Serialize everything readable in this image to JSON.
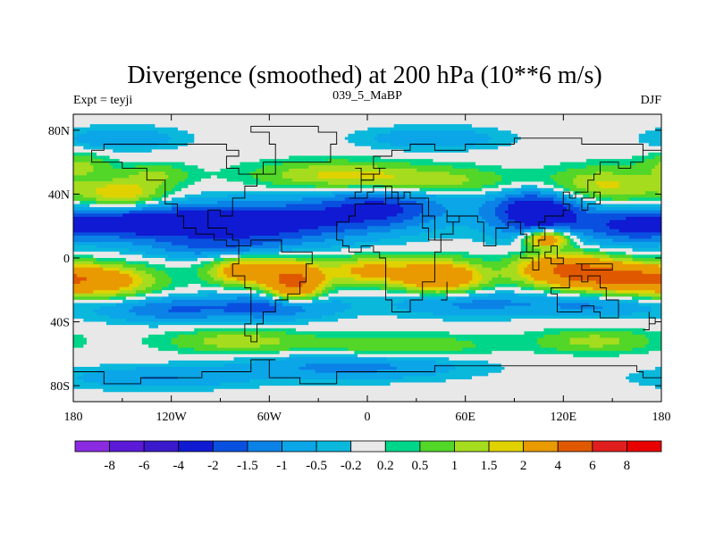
{
  "chart_data": {
    "type": "heatmap",
    "title": "Divergence (smoothed) at 200 hPa (10**6 m/s)",
    "subtitle_left": "Expt = teyji",
    "subtitle_center": "039_5_MaBP",
    "subtitle_right": "DJF",
    "xlabel": "",
    "ylabel": "",
    "xlim": [
      -180,
      180
    ],
    "ylim": [
      -90,
      90
    ],
    "x_ticks": [
      {
        "value": -180,
        "label": "180"
      },
      {
        "value": -120,
        "label": "120W"
      },
      {
        "value": -60,
        "label": "60W"
      },
      {
        "value": 0,
        "label": "0"
      },
      {
        "value": 60,
        "label": "60E"
      },
      {
        "value": 120,
        "label": "120E"
      },
      {
        "value": 180,
        "label": "180"
      }
    ],
    "y_ticks": [
      {
        "value": 80,
        "label": "80N"
      },
      {
        "value": 40,
        "label": "40N"
      },
      {
        "value": 0,
        "label": "0"
      },
      {
        "value": -40,
        "label": "40S"
      },
      {
        "value": -80,
        "label": "80S"
      }
    ],
    "colorbar": {
      "labels": [
        "-8",
        "-6",
        "-4",
        "-2",
        "-1.5",
        "-1",
        "-0.5",
        "-0.2",
        "0.2",
        "0.5",
        "1",
        "1.5",
        "2",
        "4",
        "6",
        "8"
      ],
      "colors": [
        "#8a2be2",
        "#5a1ad8",
        "#3a1acc",
        "#0f1ad2",
        "#0a50e0",
        "#0a82e6",
        "#0aa6e8",
        "#0ab8dc",
        "#e8e8e8",
        "#00d68a",
        "#52d628",
        "#a6dc1e",
        "#e0d200",
        "#e89a00",
        "#e05800",
        "#e01e1e",
        "#e80000"
      ]
    },
    "features": [
      {
        "lon": -140,
        "lat": 22,
        "sx": 40,
        "sy": 8,
        "amp": -2.5
      },
      {
        "lon": -60,
        "lat": 22,
        "sx": 40,
        "sy": 10,
        "amp": -2.2
      },
      {
        "lon": 10,
        "lat": 32,
        "sx": 30,
        "sy": 10,
        "amp": -2.0
      },
      {
        "lon": 105,
        "lat": 30,
        "sx": 22,
        "sy": 12,
        "amp": -3.0
      },
      {
        "lon": 160,
        "lat": 20,
        "sx": 20,
        "sy": 8,
        "amp": -1.5
      },
      {
        "lon": -95,
        "lat": 6,
        "sx": 30,
        "sy": 5,
        "amp": -1.0
      },
      {
        "lon": -150,
        "lat": 40,
        "sx": 18,
        "sy": 6,
        "amp": 2.0
      },
      {
        "lon": -130,
        "lat": 52,
        "sx": 15,
        "sy": 5,
        "amp": 1.0
      },
      {
        "lon": -20,
        "lat": 52,
        "sx": 35,
        "sy": 6,
        "amp": 1.5
      },
      {
        "lon": 40,
        "lat": 48,
        "sx": 40,
        "sy": 6,
        "amp": 1.3
      },
      {
        "lon": 140,
        "lat": 45,
        "sx": 30,
        "sy": 8,
        "amp": 1.8
      },
      {
        "lon": -175,
        "lat": 58,
        "sx": 12,
        "sy": 5,
        "amp": 1.0
      },
      {
        "lon": -165,
        "lat": -15,
        "sx": 25,
        "sy": 7,
        "amp": 2.4
      },
      {
        "lon": -75,
        "lat": -8,
        "sx": 15,
        "sy": 6,
        "amp": 3.0
      },
      {
        "lon": -45,
        "lat": -15,
        "sx": 12,
        "sy": 8,
        "amp": 4.5
      },
      {
        "lon": 0,
        "lat": -8,
        "sx": 20,
        "sy": 6,
        "amp": 2.2
      },
      {
        "lon": 45,
        "lat": -12,
        "sx": 18,
        "sy": 7,
        "amp": 3.5
      },
      {
        "lon": 120,
        "lat": -5,
        "sx": 20,
        "sy": 6,
        "amp": 3.0
      },
      {
        "lon": 150,
        "lat": -12,
        "sx": 30,
        "sy": 6,
        "amp": 4.0
      },
      {
        "lon": 110,
        "lat": 12,
        "sx": 10,
        "sy": 4,
        "amp": 3.5
      },
      {
        "lon": -120,
        "lat": -32,
        "sx": 30,
        "sy": 6,
        "amp": -1.5
      },
      {
        "lon": -55,
        "lat": -30,
        "sx": 25,
        "sy": 6,
        "amp": -1.8
      },
      {
        "lon": 60,
        "lat": -28,
        "sx": 35,
        "sy": 6,
        "amp": -1.2
      },
      {
        "lon": 140,
        "lat": -30,
        "sx": 30,
        "sy": 5,
        "amp": -1.0
      },
      {
        "lon": -80,
        "lat": -52,
        "sx": 30,
        "sy": 5,
        "amp": 1.3
      },
      {
        "lon": 20,
        "lat": -55,
        "sx": 40,
        "sy": 5,
        "amp": 1.0
      },
      {
        "lon": 140,
        "lat": -52,
        "sx": 25,
        "sy": 5,
        "amp": 1.2
      },
      {
        "lon": -10,
        "lat": -68,
        "sx": 50,
        "sy": 6,
        "amp": -1.2
      },
      {
        "lon": -130,
        "lat": -75,
        "sx": 40,
        "sy": 5,
        "amp": -1.0
      },
      {
        "lon": -150,
        "lat": 75,
        "sx": 25,
        "sy": 5,
        "amp": -1.0
      },
      {
        "lon": 40,
        "lat": 75,
        "sx": 30,
        "sy": 5,
        "amp": -1.0
      }
    ],
    "coastlines": [
      [
        [
          -168,
          66
        ],
        [
          -160,
          70
        ],
        [
          -140,
          70
        ],
        [
          -125,
          72
        ],
        [
          -100,
          70
        ],
        [
          -85,
          68
        ],
        [
          -80,
          62
        ],
        [
          -85,
          55
        ],
        [
          -78,
          52
        ],
        [
          -65,
          60
        ],
        [
          -55,
          52
        ],
        [
          -66,
          45
        ],
        [
          -75,
          38
        ],
        [
          -81,
          30
        ],
        [
          -82,
          25
        ],
        [
          -90,
          29
        ],
        [
          -97,
          26
        ],
        [
          -97,
          20
        ],
        [
          -92,
          18
        ],
        [
          -87,
          15
        ],
        [
          -83,
          10
        ],
        [
          -78,
          8
        ],
        [
          -85,
          12
        ],
        [
          -92,
          15
        ],
        [
          -105,
          20
        ],
        [
          -112,
          28
        ],
        [
          -118,
          34
        ],
        [
          -124,
          42
        ],
        [
          -124,
          48
        ],
        [
          -135,
          58
        ],
        [
          -150,
          60
        ],
        [
          -165,
          60
        ],
        [
          -168,
          66
        ]
      ],
      [
        [
          -78,
          8
        ],
        [
          -72,
          12
        ],
        [
          -62,
          10
        ],
        [
          -52,
          5
        ],
        [
          -35,
          -5
        ],
        [
          -38,
          -15
        ],
        [
          -42,
          -22
        ],
        [
          -48,
          -28
        ],
        [
          -57,
          -35
        ],
        [
          -63,
          -42
        ],
        [
          -68,
          -52
        ],
        [
          -72,
          -50
        ],
        [
          -74,
          -40
        ],
        [
          -72,
          -30
        ],
        [
          -70,
          -18
        ],
        [
          -76,
          -12
        ],
        [
          -81,
          -5
        ],
        [
          -80,
          2
        ],
        [
          -78,
          8
        ]
      ],
      [
        [
          -18,
          15
        ],
        [
          -17,
          21
        ],
        [
          -13,
          27
        ],
        [
          -6,
          35
        ],
        [
          10,
          37
        ],
        [
          20,
          32
        ],
        [
          32,
          31
        ],
        [
          35,
          28
        ],
        [
          43,
          12
        ],
        [
          51,
          12
        ],
        [
          45,
          2
        ],
        [
          40,
          -10
        ],
        [
          40,
          -16
        ],
        [
          35,
          -22
        ],
        [
          33,
          -28
        ],
        [
          28,
          -33
        ],
        [
          20,
          -35
        ],
        [
          16,
          -28
        ],
        [
          12,
          -17
        ],
        [
          13,
          -8
        ],
        [
          10,
          0
        ],
        [
          9,
          4
        ],
        [
          2,
          6
        ],
        [
          -5,
          5
        ],
        [
          -10,
          6
        ],
        [
          -15,
          10
        ],
        [
          -18,
          15
        ]
      ],
      [
        [
          -10,
          36
        ],
        [
          -9,
          43
        ],
        [
          -2,
          44
        ],
        [
          -4,
          48
        ],
        [
          5,
          52
        ],
        [
          8,
          55
        ],
        [
          10,
          58
        ],
        [
          5,
          62
        ],
        [
          14,
          68
        ],
        [
          25,
          71
        ],
        [
          40,
          68
        ],
        [
          60,
          70
        ],
        [
          75,
          72
        ],
        [
          90,
          76
        ],
        [
          110,
          74
        ],
        [
          130,
          72
        ],
        [
          150,
          71
        ],
        [
          170,
          69
        ],
        [
          180,
          66
        ],
        [
          170,
          60
        ],
        [
          162,
          58
        ],
        [
          155,
          60
        ],
        [
          142,
          53
        ],
        [
          140,
          47
        ],
        [
          135,
          43
        ],
        [
          130,
          42
        ],
        [
          127,
          38
        ],
        [
          122,
          40
        ],
        [
          120,
          35
        ],
        [
          122,
          30
        ],
        [
          119,
          25
        ],
        [
          110,
          21
        ],
        [
          106,
          18
        ],
        [
          109,
          12
        ],
        [
          105,
          9
        ],
        [
          100,
          14
        ],
        [
          100,
          6
        ],
        [
          103,
          2
        ],
        [
          98,
          8
        ],
        [
          98,
          16
        ],
        [
          92,
          21
        ],
        [
          86,
          20
        ],
        [
          80,
          15
        ],
        [
          77,
          8
        ],
        [
          73,
          18
        ],
        [
          72,
          21
        ],
        [
          66,
          25
        ],
        [
          57,
          26
        ],
        [
          56,
          24
        ],
        [
          52,
          24
        ],
        [
          48,
          30
        ],
        [
          50,
          26
        ],
        [
          56,
          21
        ],
        [
          53,
          16
        ],
        [
          44,
          12
        ],
        [
          39,
          20
        ],
        [
          34,
          28
        ],
        [
          36,
          36
        ],
        [
          27,
          37
        ],
        [
          27,
          41
        ],
        [
          24,
          38
        ],
        [
          22,
          37
        ],
        [
          20,
          40
        ],
        [
          14,
          45
        ],
        [
          12,
          44
        ],
        [
          16,
          39
        ],
        [
          12,
          38
        ],
        [
          10,
          44
        ],
        [
          5,
          43
        ],
        [
          -1,
          38
        ],
        [
          -5,
          36
        ],
        [
          -10,
          36
        ]
      ],
      [
        [
          114,
          -22
        ],
        [
          115,
          -34
        ],
        [
          123,
          -34
        ],
        [
          131,
          -31
        ],
        [
          138,
          -35
        ],
        [
          144,
          -38
        ],
        [
          150,
          -36
        ],
        [
          153,
          -28
        ],
        [
          153,
          -25
        ],
        [
          146,
          -19
        ],
        [
          142,
          -11
        ],
        [
          137,
          -12
        ],
        [
          136,
          -15
        ],
        [
          130,
          -12
        ],
        [
          125,
          -15
        ],
        [
          122,
          -18
        ],
        [
          114,
          -22
        ]
      ],
      [
        [
          -55,
          60
        ],
        [
          -45,
          60
        ],
        [
          -22,
          70
        ],
        [
          -20,
          78
        ],
        [
          -30,
          83
        ],
        [
          -60,
          82
        ],
        [
          -72,
          78
        ],
        [
          -60,
          70
        ],
        [
          -55,
          60
        ]
      ],
      [
        [
          -180,
          -70
        ],
        [
          -160,
          -78
        ],
        [
          -140,
          -75
        ],
        [
          -100,
          -72
        ],
        [
          -70,
          -65
        ],
        [
          -58,
          -63
        ],
        [
          -60,
          -75
        ],
        [
          -40,
          -78
        ],
        [
          -20,
          -72
        ],
        [
          0,
          -70
        ],
        [
          40,
          -69
        ],
        [
          70,
          -68
        ],
        [
          100,
          -66
        ],
        [
          140,
          -66
        ],
        [
          165,
          -70
        ],
        [
          170,
          -75
        ],
        [
          180,
          -78
        ]
      ],
      [
        [
          129,
          -3
        ],
        [
          140,
          -3
        ],
        [
          150,
          -6
        ],
        [
          147,
          -9
        ],
        [
          140,
          -9
        ],
        [
          133,
          -4
        ],
        [
          129,
          -3
        ]
      ],
      [
        [
          95,
          5
        ],
        [
          105,
          -5
        ],
        [
          106,
          -6
        ],
        [
          100,
          0
        ],
        [
          95,
          5
        ]
      ],
      [
        [
          109,
          0
        ],
        [
          111,
          -3
        ],
        [
          117,
          -4
        ],
        [
          119,
          1
        ],
        [
          117,
          6
        ],
        [
          112,
          2
        ],
        [
          109,
          0
        ]
      ],
      [
        [
          -5,
          50
        ],
        [
          2,
          51
        ],
        [
          -3,
          55
        ],
        [
          -6,
          58
        ],
        [
          -5,
          50
        ]
      ],
      [
        [
          130,
          31
        ],
        [
          136,
          34
        ],
        [
          141,
          36
        ],
        [
          141,
          41
        ],
        [
          138,
          38
        ],
        [
          132,
          34
        ],
        [
          130,
          31
        ]
      ],
      [
        [
          44,
          -25
        ],
        [
          48,
          -15
        ],
        [
          50,
          -17
        ],
        [
          47,
          -25
        ],
        [
          44,
          -25
        ]
      ],
      [
        [
          167,
          -46
        ],
        [
          174,
          -41
        ],
        [
          178,
          -38
        ],
        [
          174,
          -35
        ],
        [
          171,
          -44
        ],
        [
          167,
          -46
        ]
      ]
    ]
  }
}
